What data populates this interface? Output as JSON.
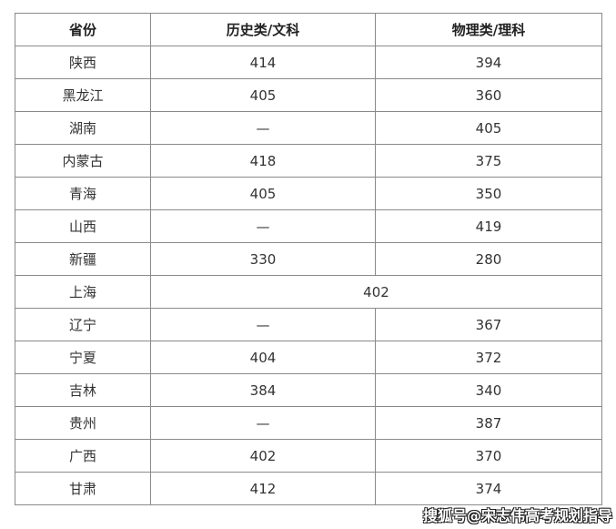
{
  "table": {
    "headers": [
      "省份",
      "历史类/文科",
      "物理类/理科"
    ],
    "rows": [
      {
        "province": "陕西",
        "history": "414",
        "physics": "394"
      },
      {
        "province": "黑龙江",
        "history": "405",
        "physics": "360"
      },
      {
        "province": "湖南",
        "history": "—",
        "physics": "405"
      },
      {
        "province": "内蒙古",
        "history": "418",
        "physics": "375"
      },
      {
        "province": "青海",
        "history": "405",
        "physics": "350"
      },
      {
        "province": "山西",
        "history": "—",
        "physics": "419"
      },
      {
        "province": "新疆",
        "history": "330",
        "physics": "280"
      },
      {
        "province": "上海",
        "merged": "402"
      },
      {
        "province": "辽宁",
        "history": "—",
        "physics": "367"
      },
      {
        "province": "宁夏",
        "history": "404",
        "physics": "372"
      },
      {
        "province": "吉林",
        "history": "384",
        "physics": "340"
      },
      {
        "province": "贵州",
        "history": "—",
        "physics": "387"
      },
      {
        "province": "广西",
        "history": "402",
        "physics": "370"
      },
      {
        "province": "甘肃",
        "history": "412",
        "physics": "374"
      }
    ]
  },
  "watermark": "搜狐号@宋志伟高考规划指导"
}
